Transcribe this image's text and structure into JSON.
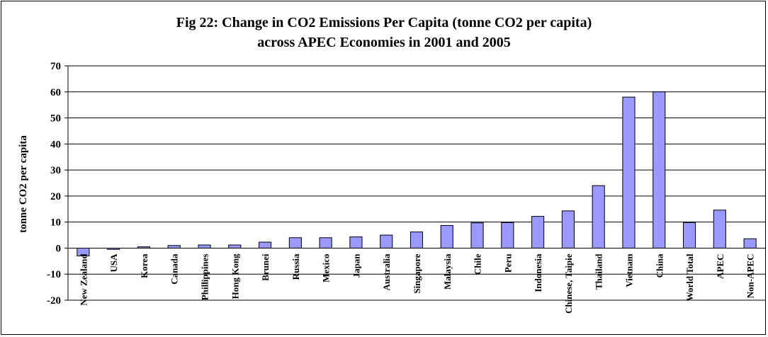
{
  "chart_data": {
    "type": "bar",
    "title": "Fig 22: Change in CO2 Emissions Per Capita (tonne CO2 per capita)",
    "subtitle": "across APEC Economies in  2001 and 2005",
    "xlabel": "",
    "ylabel": "tonne CO2 per capita",
    "ylim": [
      -20,
      70
    ],
    "yticks": [
      70,
      60,
      50,
      40,
      30,
      20,
      10,
      0,
      -10,
      -20
    ],
    "grid": true,
    "categories": [
      "New Zealand",
      "USA",
      "Korea",
      "Canada",
      "Phillippines",
      "Hong Kong",
      "Brunei",
      "Russia",
      "Mexico",
      "Japan",
      "Australia",
      "Singapore",
      "Malaysia",
      "Chile",
      "Peru",
      "Indonesia",
      "Chinese, Taipie",
      "Thailand",
      "Vietnam",
      "China",
      "World Total",
      "APEC",
      "Non-APEC"
    ],
    "values": [
      -3,
      -0.5,
      0.5,
      1,
      1.2,
      1.2,
      2.3,
      4,
      4,
      4.3,
      5,
      6.2,
      8.7,
      9.7,
      9.8,
      12.2,
      14.3,
      24,
      58,
      60,
      9.8,
      14.6,
      3.6
    ],
    "bar_color": "#9999ff",
    "bar_stroke": "#000000"
  }
}
